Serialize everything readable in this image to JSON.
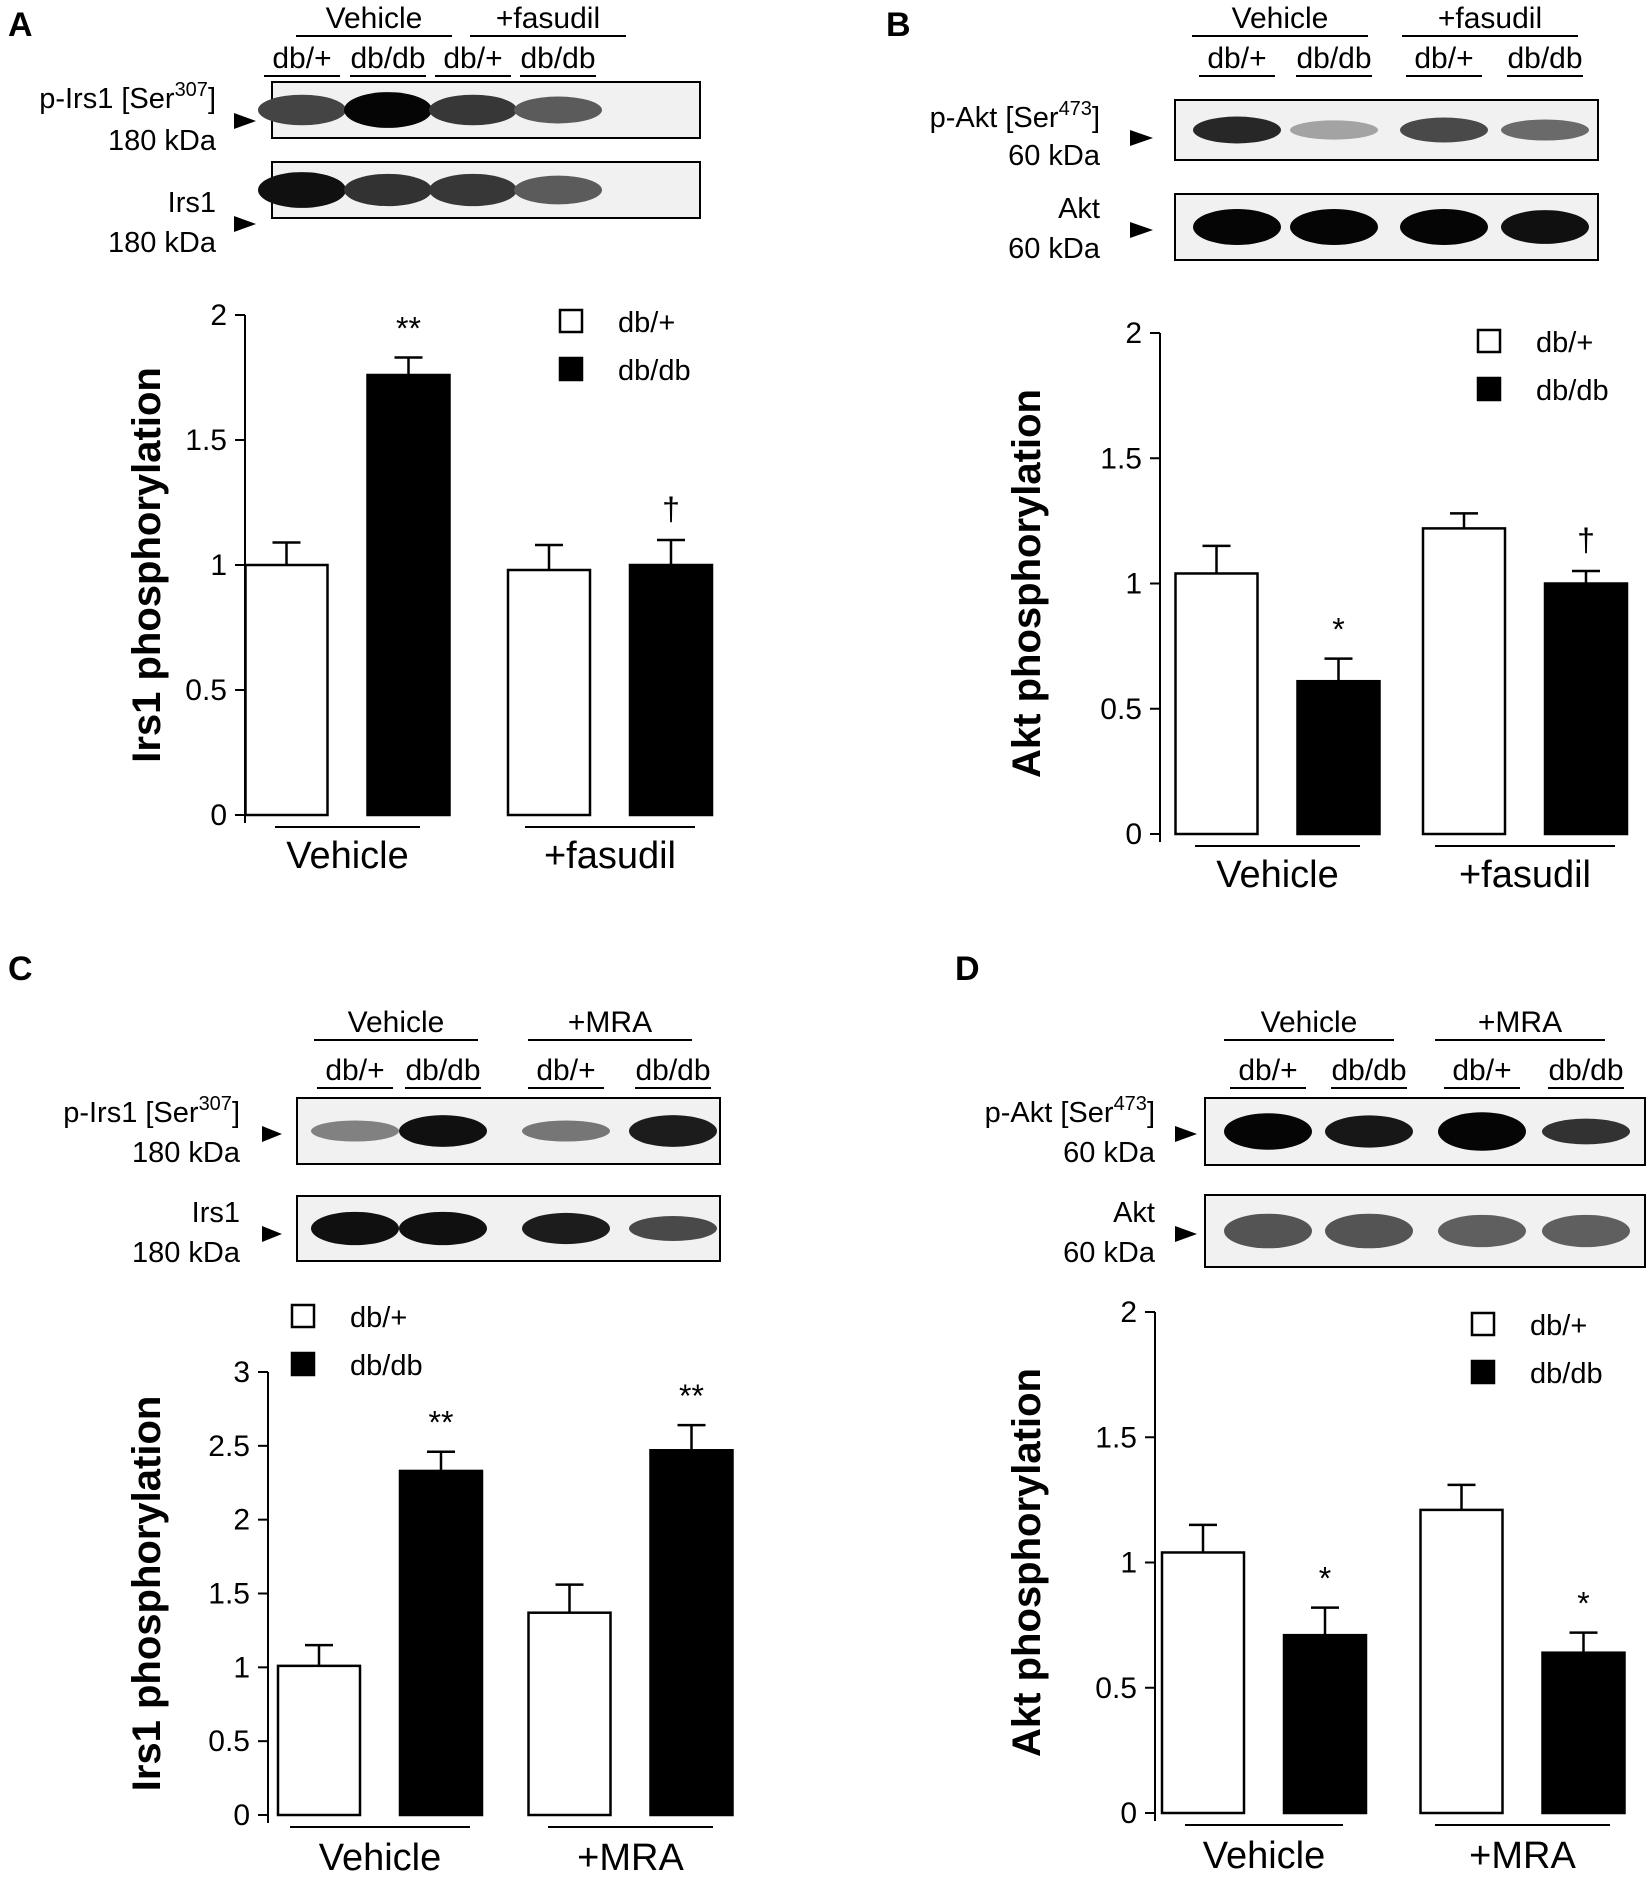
{
  "colors": {
    "db_plus": "#ffffff",
    "db_db": "#000000",
    "stroke": "#000000"
  },
  "panels": [
    {
      "id": "A",
      "letter": "A",
      "groups": [
        "Vehicle",
        "+fasudil"
      ],
      "lanes": [
        "db/+",
        "db/db",
        "db/+",
        "db/db"
      ],
      "blots": [
        {
          "label_lines": [
            "p-Irs1 [Ser",
            "307",
            "]",
            "180  kDa"
          ],
          "has_sup": true,
          "intensities": [
            0.72,
            1.0,
            0.78,
            0.62
          ],
          "thickness": [
            0.85,
            1.0,
            0.85,
            0.75
          ]
        },
        {
          "label_lines": [
            "Irs1",
            "",
            "",
            "180  kDa"
          ],
          "has_sup": false,
          "intensities": [
            0.95,
            0.8,
            0.78,
            0.62
          ],
          "thickness": [
            1.0,
            0.9,
            0.9,
            0.8
          ]
        }
      ],
      "legend": [
        {
          "key": "db_plus",
          "label": "db/+"
        },
        {
          "key": "db_db",
          "label": "db/db"
        }
      ],
      "chart_data": {
        "type": "bar",
        "ylabel": "Irs1 phosphorylation",
        "categories": [
          "Vehicle",
          "+fasudil"
        ],
        "ylim": [
          0,
          2
        ],
        "yticks": [
          "0",
          "0.5",
          "1",
          "1.5",
          "2"
        ],
        "series": [
          {
            "name": "db/+",
            "values": [
              1.0,
              0.98
            ],
            "errors": [
              0.09,
              0.1
            ]
          },
          {
            "name": "db/db",
            "values": [
              1.76,
              1.0
            ],
            "errors": [
              0.07,
              0.1
            ]
          }
        ],
        "annotations": [
          {
            "series": 1,
            "category": 0,
            "text": "**"
          },
          {
            "series": 1,
            "category": 1,
            "text": "†"
          }
        ]
      }
    },
    {
      "id": "B",
      "letter": "B",
      "groups": [
        "Vehicle",
        "+fasudil"
      ],
      "lanes": [
        "db/+",
        "db/db",
        "db/+",
        "db/db"
      ],
      "blots": [
        {
          "label_lines": [
            "p-Akt [Ser",
            "473",
            "]",
            "60 kDa"
          ],
          "has_sup": true,
          "intensities": [
            0.85,
            0.3,
            0.7,
            0.55
          ],
          "thickness": [
            0.7,
            0.5,
            0.65,
            0.55
          ]
        },
        {
          "label_lines": [
            "Akt",
            "",
            "",
            "60 kDa"
          ],
          "has_sup": false,
          "intensities": [
            1.0,
            1.0,
            1.0,
            0.95
          ],
          "thickness": [
            0.85,
            0.85,
            0.85,
            0.8
          ]
        }
      ],
      "legend": [
        {
          "key": "db_plus",
          "label": "db/+"
        },
        {
          "key": "db_db",
          "label": "db/db"
        }
      ],
      "chart_data": {
        "type": "bar",
        "ylabel": "Akt phosphorylation",
        "categories": [
          "Vehicle",
          "+fasudil"
        ],
        "ylim": [
          0,
          2
        ],
        "yticks": [
          "0",
          "0.5",
          "1",
          "1.5",
          "2"
        ],
        "series": [
          {
            "name": "db/+",
            "values": [
              1.04,
              1.22
            ],
            "errors": [
              0.11,
              0.06
            ]
          },
          {
            "name": "db/db",
            "values": [
              0.61,
              1.0
            ],
            "errors": [
              0.09,
              0.05
            ]
          }
        ],
        "annotations": [
          {
            "series": 1,
            "category": 0,
            "text": "*"
          },
          {
            "series": 1,
            "category": 1,
            "text": "†"
          }
        ]
      }
    },
    {
      "id": "C",
      "letter": "C",
      "groups": [
        "Vehicle",
        "+MRA"
      ],
      "lanes": [
        "db/+",
        "db/db",
        "db/+",
        "db/db"
      ],
      "blots": [
        {
          "label_lines": [
            "p-Irs1 [Ser",
            "307",
            "]",
            "180  kDa"
          ],
          "has_sup": true,
          "intensities": [
            0.45,
            0.95,
            0.5,
            0.9
          ],
          "thickness": [
            0.5,
            0.75,
            0.5,
            0.75
          ]
        },
        {
          "label_lines": [
            "Irs1",
            "",
            "",
            "180  kDa"
          ],
          "has_sup": false,
          "intensities": [
            0.95,
            0.95,
            0.9,
            0.7
          ],
          "thickness": [
            0.8,
            0.8,
            0.75,
            0.6
          ]
        }
      ],
      "legend": [
        {
          "key": "db_plus",
          "label": "db/+"
        },
        {
          "key": "db_db",
          "label": "db/db"
        }
      ],
      "chart_data": {
        "type": "bar",
        "ylabel": "Irs1 phosphorylation",
        "categories": [
          "Vehicle",
          "+MRA"
        ],
        "ylim": [
          0,
          3
        ],
        "yticks": [
          "0",
          "0.5",
          "1",
          "1.5",
          "2",
          "2.5",
          "3"
        ],
        "series": [
          {
            "name": "db/+",
            "values": [
              1.01,
              1.37
            ],
            "errors": [
              0.14,
              0.19
            ]
          },
          {
            "name": "db/db",
            "values": [
              2.33,
              2.47
            ],
            "errors": [
              0.13,
              0.17
            ]
          }
        ],
        "annotations": [
          {
            "series": 1,
            "category": 0,
            "text": "**"
          },
          {
            "series": 1,
            "category": 1,
            "text": "**"
          }
        ]
      }
    },
    {
      "id": "D",
      "letter": "D",
      "groups": [
        "Vehicle",
        "+MRA"
      ],
      "lanes": [
        "db/+",
        "db/db",
        "db/+",
        "db/db"
      ],
      "blots": [
        {
          "label_lines": [
            "p-Akt [Ser",
            "473",
            "]",
            "60 kDa"
          ],
          "has_sup": true,
          "intensities": [
            1.0,
            0.92,
            1.0,
            0.8
          ],
          "thickness": [
            0.85,
            0.75,
            0.9,
            0.6
          ]
        },
        {
          "label_lines": [
            "Akt",
            "",
            "",
            "60 kDa"
          ],
          "has_sup": false,
          "intensities": [
            0.65,
            0.65,
            0.6,
            0.6
          ],
          "thickness": [
            0.75,
            0.75,
            0.7,
            0.7
          ]
        }
      ],
      "legend": [
        {
          "key": "db_plus",
          "label": "db/+"
        },
        {
          "key": "db_db",
          "label": "db/db"
        }
      ],
      "chart_data": {
        "type": "bar",
        "ylabel": "Akt phosphorylation",
        "categories": [
          "Vehicle",
          "+MRA"
        ],
        "ylim": [
          0,
          2
        ],
        "yticks": [
          "0",
          "0.5",
          "1",
          "1.5",
          "2"
        ],
        "series": [
          {
            "name": "db/+",
            "values": [
              1.04,
              1.21
            ],
            "errors": [
              0.11,
              0.1
            ]
          },
          {
            "name": "db/db",
            "values": [
              0.71,
              0.64
            ],
            "errors": [
              0.11,
              0.08
            ]
          }
        ],
        "annotations": [
          {
            "series": 1,
            "category": 0,
            "text": "*"
          },
          {
            "series": 1,
            "category": 1,
            "text": "*"
          }
        ]
      }
    }
  ]
}
